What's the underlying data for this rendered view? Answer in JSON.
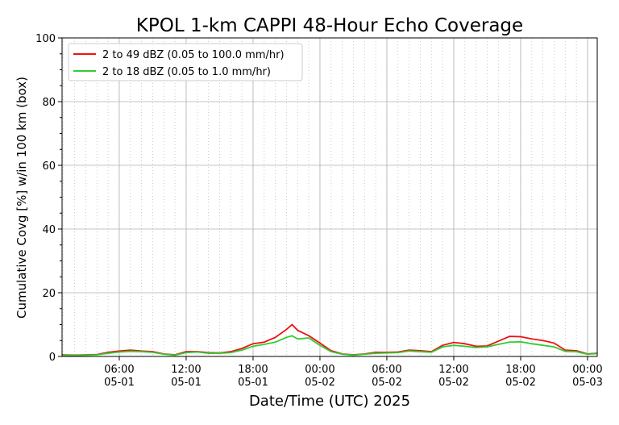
{
  "chart_data": {
    "type": "line",
    "title": "KPOL 1-km CAPPI 48-Hour Echo Coverage",
    "x_label": "Date/Time (UTC) 2025",
    "y_label": "Cumulative Covg [%] w/in 100 km (box)",
    "x": [
      0.87,
      1,
      2,
      3,
      4,
      5,
      6,
      7,
      8,
      9,
      10,
      11,
      12,
      13,
      14,
      15,
      16,
      17,
      18,
      19,
      20,
      21,
      21.5,
      22,
      23,
      24,
      25,
      26,
      27,
      28,
      29,
      30,
      31,
      32,
      33,
      34,
      35,
      36,
      37,
      38,
      39,
      40,
      41,
      42,
      43,
      44,
      45,
      46,
      47,
      48,
      48.87
    ],
    "series": [
      {
        "name": "2 to 49 dBZ (0.05 to 100.0 mm/hr)",
        "color": "#ee1111",
        "values": [
          0.5,
          0.5,
          0.4,
          0.5,
          0.6,
          1.3,
          1.7,
          2.0,
          1.7,
          1.5,
          0.8,
          0.5,
          1.5,
          1.5,
          1.2,
          1.1,
          1.5,
          2.5,
          4.0,
          4.5,
          6.0,
          8.5,
          10.0,
          8.2,
          6.5,
          4.2,
          1.8,
          0.8,
          0.5,
          0.8,
          1.3,
          1.3,
          1.4,
          2.0,
          1.8,
          1.5,
          3.5,
          4.4,
          4.0,
          3.2,
          3.3,
          4.8,
          6.3,
          6.2,
          5.5,
          5.0,
          4.2,
          2.0,
          1.8,
          0.8,
          1.0
        ]
      },
      {
        "name": "2 to 18 dBZ (0.05 to 1.0 mm/hr)",
        "color": "#33cc33",
        "values": [
          0.4,
          0.4,
          0.3,
          0.4,
          0.5,
          1.0,
          1.4,
          1.6,
          1.5,
          1.3,
          0.7,
          0.4,
          1.2,
          1.4,
          1.0,
          1.0,
          1.2,
          2.0,
          3.2,
          3.8,
          4.5,
          6.0,
          6.5,
          5.5,
          5.8,
          3.5,
          1.5,
          0.7,
          0.4,
          0.7,
          1.0,
          1.1,
          1.2,
          1.7,
          1.5,
          1.3,
          3.0,
          3.5,
          3.2,
          2.8,
          3.0,
          3.8,
          4.5,
          4.6,
          4.0,
          3.5,
          3.0,
          1.6,
          1.5,
          0.7,
          0.9
        ]
      }
    ],
    "xlim": [
      0.87,
      48.87
    ],
    "xticks": [
      {
        "value": 6,
        "label": "06:00\n05-01"
      },
      {
        "value": 12,
        "label": "12:00\n05-01"
      },
      {
        "value": 18,
        "label": "18:00\n05-01"
      },
      {
        "value": 24,
        "label": "00:00\n05-02"
      },
      {
        "value": 30,
        "label": "06:00\n05-02"
      },
      {
        "value": 36,
        "label": "12:00\n05-02"
      },
      {
        "value": 42,
        "label": "18:00\n05-02"
      },
      {
        "value": 48,
        "label": "00:00\n05-03"
      }
    ],
    "ylim": [
      0,
      100
    ],
    "yticks": [
      0,
      20,
      40,
      60,
      80,
      100
    ],
    "grid": true,
    "legend": "upper left"
  }
}
